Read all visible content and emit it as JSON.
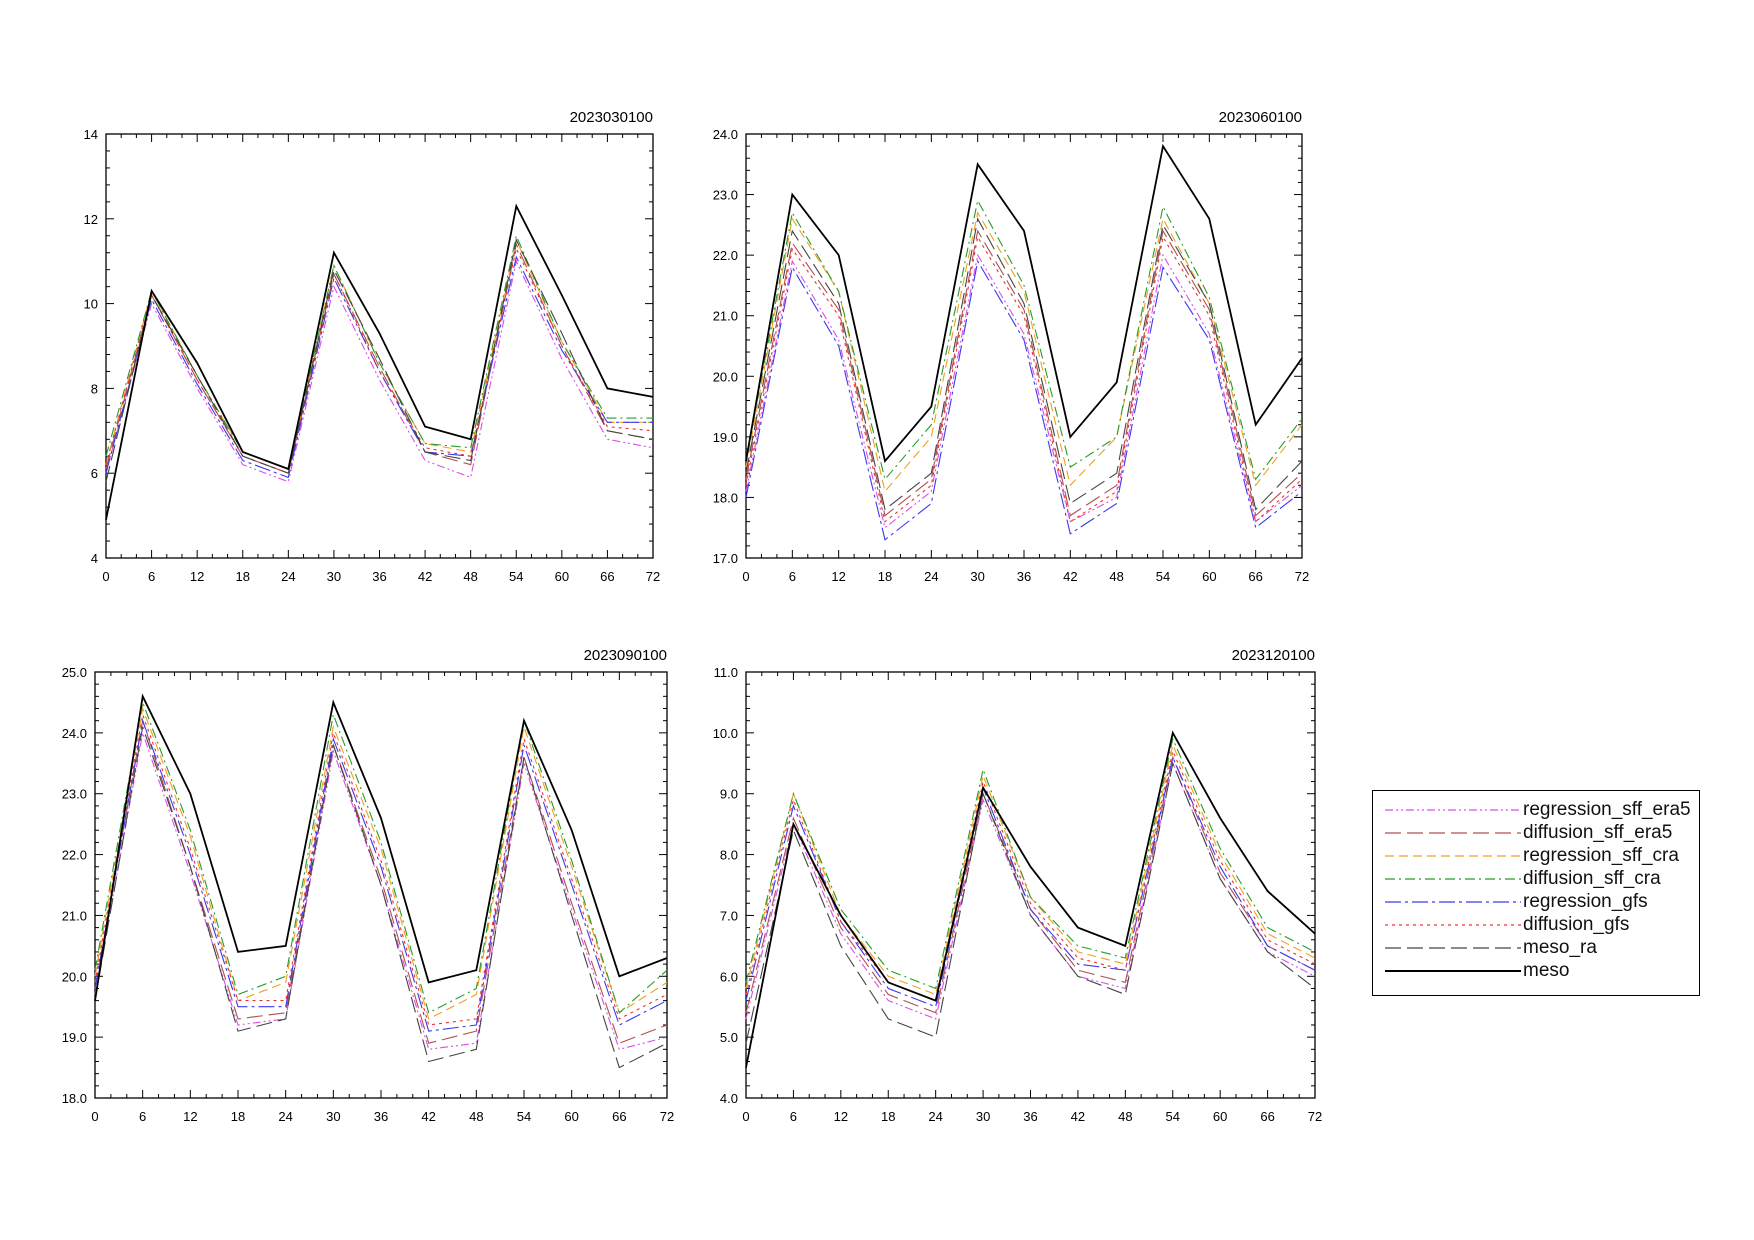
{
  "chart_data": [
    {
      "type": "line",
      "title": "2023030100",
      "x": [
        0,
        6,
        12,
        18,
        24,
        30,
        36,
        42,
        48,
        54,
        60,
        66,
        72
      ],
      "ylim": [
        4,
        14
      ],
      "yticks": [
        4,
        6,
        8,
        10,
        12,
        14
      ],
      "ytick_labels": [
        "4",
        "6",
        "8",
        "10",
        "12",
        "14"
      ],
      "series": [
        {
          "name": "regression_sff_era5",
          "values": [
            6.0,
            10.0,
            8.0,
            6.2,
            5.8,
            10.4,
            8.2,
            6.3,
            5.9,
            11.0,
            8.7,
            6.8,
            6.6
          ]
        },
        {
          "name": "diffusion_sff_era5",
          "values": [
            6.1,
            10.2,
            8.2,
            6.4,
            6.0,
            10.7,
            8.5,
            6.5,
            6.2,
            11.4,
            9.0,
            7.0,
            6.8
          ]
        },
        {
          "name": "regression_sff_cra",
          "values": [
            6.2,
            10.3,
            8.3,
            6.5,
            6.1,
            10.9,
            8.6,
            6.7,
            6.5,
            11.5,
            9.1,
            7.2,
            7.2
          ]
        },
        {
          "name": "diffusion_sff_cra",
          "values": [
            6.4,
            10.3,
            8.3,
            6.5,
            6.1,
            10.9,
            8.6,
            6.7,
            6.6,
            11.6,
            9.1,
            7.3,
            7.3
          ]
        },
        {
          "name": "regression_gfs",
          "values": [
            6.0,
            10.1,
            8.1,
            6.3,
            5.9,
            10.6,
            8.4,
            6.5,
            6.4,
            11.1,
            8.9,
            7.2,
            7.2
          ]
        },
        {
          "name": "diffusion_gfs",
          "values": [
            6.2,
            10.2,
            8.2,
            6.4,
            6.0,
            10.7,
            8.4,
            6.6,
            6.4,
            11.3,
            9.0,
            7.1,
            7.0
          ]
        },
        {
          "name": "meso_ra",
          "values": [
            5.8,
            10.2,
            8.3,
            6.4,
            6.0,
            10.8,
            8.7,
            6.5,
            6.3,
            11.5,
            9.3,
            7.0,
            6.8
          ]
        },
        {
          "name": "meso",
          "values": [
            4.9,
            10.3,
            8.6,
            6.5,
            6.1,
            11.2,
            9.3,
            7.1,
            6.8,
            12.3,
            10.2,
            8.0,
            7.8
          ]
        }
      ]
    },
    {
      "type": "line",
      "title": "2023060100",
      "x": [
        0,
        6,
        12,
        18,
        24,
        30,
        36,
        42,
        48,
        54,
        60,
        66,
        72
      ],
      "ylim": [
        17.0,
        24.0
      ],
      "yticks": [
        17,
        18,
        19,
        20,
        21,
        22,
        23,
        24
      ],
      "ytick_labels": [
        "17.0",
        "18.0",
        "19.0",
        "20.0",
        "21.0",
        "22.0",
        "23.0",
        "24.0"
      ],
      "series": [
        {
          "name": "regression_sff_era5",
          "values": [
            18.1,
            21.9,
            20.6,
            17.5,
            18.1,
            22.0,
            20.7,
            17.6,
            18.0,
            22.0,
            20.7,
            17.6,
            18.2
          ]
        },
        {
          "name": "diffusion_sff_era5",
          "values": [
            18.3,
            22.2,
            21.1,
            17.7,
            18.3,
            22.4,
            21.1,
            17.7,
            18.2,
            22.4,
            21.1,
            17.7,
            18.4
          ]
        },
        {
          "name": "regression_sff_cra",
          "values": [
            18.5,
            22.6,
            21.4,
            18.1,
            19.0,
            22.7,
            21.4,
            18.2,
            19.0,
            22.6,
            21.2,
            18.2,
            19.2
          ]
        },
        {
          "name": "diffusion_sff_cra",
          "values": [
            18.6,
            22.7,
            21.4,
            18.3,
            19.2,
            22.9,
            21.5,
            18.5,
            19.0,
            22.8,
            21.3,
            18.3,
            19.3
          ]
        },
        {
          "name": "regression_gfs",
          "values": [
            18.0,
            21.8,
            20.5,
            17.3,
            17.9,
            21.9,
            20.6,
            17.4,
            17.9,
            21.8,
            20.6,
            17.5,
            18.1
          ]
        },
        {
          "name": "diffusion_gfs",
          "values": [
            18.2,
            22.1,
            21.0,
            17.6,
            18.2,
            22.3,
            21.0,
            17.6,
            18.1,
            22.3,
            21.0,
            17.6,
            18.3
          ]
        },
        {
          "name": "meso_ra",
          "values": [
            18.4,
            22.4,
            21.2,
            17.8,
            18.4,
            22.6,
            21.2,
            17.9,
            18.4,
            22.5,
            21.2,
            17.8,
            18.6
          ]
        },
        {
          "name": "meso",
          "values": [
            18.6,
            23.0,
            22.0,
            18.6,
            19.5,
            23.5,
            22.4,
            19.0,
            19.9,
            23.8,
            22.6,
            19.2,
            20.3
          ]
        }
      ]
    },
    {
      "type": "line",
      "title": "2023090100",
      "x": [
        0,
        6,
        12,
        18,
        24,
        30,
        36,
        42,
        48,
        54,
        60,
        66,
        72
      ],
      "ylim": [
        18.0,
        25.0
      ],
      "yticks": [
        18,
        19,
        20,
        21,
        22,
        23,
        24,
        25
      ],
      "ytick_labels": [
        "18.0",
        "19.0",
        "20.0",
        "21.0",
        "22.0",
        "23.0",
        "24.0",
        "25.0"
      ],
      "series": [
        {
          "name": "regression_sff_era5",
          "values": [
            19.7,
            24.0,
            21.7,
            19.2,
            19.3,
            23.7,
            21.5,
            18.8,
            18.9,
            23.5,
            21.1,
            18.8,
            19.0
          ]
        },
        {
          "name": "diffusion_sff_era5",
          "values": [
            19.8,
            24.2,
            21.8,
            19.3,
            19.4,
            23.8,
            21.6,
            18.9,
            19.1,
            23.6,
            21.2,
            18.9,
            19.2
          ]
        },
        {
          "name": "regression_sff_cra",
          "values": [
            20.0,
            24.4,
            22.3,
            19.6,
            19.9,
            24.1,
            22.1,
            19.3,
            19.7,
            24.1,
            21.8,
            19.4,
            19.9
          ]
        },
        {
          "name": "diffusion_sff_cra",
          "values": [
            20.1,
            24.5,
            22.4,
            19.7,
            20.0,
            24.3,
            22.2,
            19.4,
            19.8,
            24.2,
            21.9,
            19.4,
            20.1
          ]
        },
        {
          "name": "regression_gfs",
          "values": [
            19.8,
            24.2,
            22.0,
            19.5,
            19.5,
            23.9,
            21.8,
            19.1,
            19.2,
            23.8,
            21.5,
            19.2,
            19.6
          ]
        },
        {
          "name": "diffusion_gfs",
          "values": [
            19.9,
            24.3,
            22.1,
            19.6,
            19.6,
            24.0,
            21.9,
            19.2,
            19.3,
            23.9,
            21.6,
            19.3,
            19.7
          ]
        },
        {
          "name": "meso_ra",
          "values": [
            19.6,
            24.1,
            21.8,
            19.1,
            19.3,
            23.8,
            21.5,
            18.6,
            18.8,
            23.6,
            21.0,
            18.5,
            18.9
          ]
        },
        {
          "name": "meso",
          "values": [
            19.6,
            24.6,
            23.0,
            20.4,
            20.5,
            24.5,
            22.6,
            19.9,
            20.1,
            24.2,
            22.4,
            20.0,
            20.3
          ]
        }
      ]
    },
    {
      "type": "line",
      "title": "2023120100",
      "x": [
        0,
        6,
        12,
        18,
        24,
        30,
        36,
        42,
        48,
        54,
        60,
        66,
        72
      ],
      "ylim": [
        4.0,
        11.0
      ],
      "yticks": [
        4,
        5,
        6,
        7,
        8,
        9,
        10,
        11
      ],
      "ytick_labels": [
        "4.0",
        "5.0",
        "6.0",
        "7.0",
        "8.0",
        "9.0",
        "10.0",
        "11.0"
      ],
      "series": [
        {
          "name": "regression_sff_era5",
          "values": [
            5.3,
            8.5,
            6.7,
            5.6,
            5.3,
            8.9,
            7.0,
            6.0,
            5.8,
            9.5,
            7.6,
            6.4,
            6.0
          ]
        },
        {
          "name": "diffusion_sff_era5",
          "values": [
            5.4,
            8.6,
            6.8,
            5.7,
            5.4,
            9.0,
            7.1,
            6.1,
            5.9,
            9.6,
            7.7,
            6.5,
            6.1
          ]
        },
        {
          "name": "regression_sff_cra",
          "values": [
            5.8,
            9.0,
            7.0,
            6.0,
            5.7,
            9.3,
            7.3,
            6.4,
            6.2,
            9.8,
            8.0,
            6.7,
            6.3
          ]
        },
        {
          "name": "diffusion_sff_cra",
          "values": [
            5.9,
            9.0,
            7.1,
            6.1,
            5.8,
            9.4,
            7.3,
            6.5,
            6.3,
            9.9,
            8.1,
            6.8,
            6.4
          ]
        },
        {
          "name": "regression_gfs",
          "values": [
            5.6,
            8.8,
            6.9,
            5.8,
            5.5,
            9.1,
            7.1,
            6.2,
            6.1,
            9.6,
            7.8,
            6.5,
            6.1
          ]
        },
        {
          "name": "diffusion_gfs",
          "values": [
            5.7,
            8.9,
            6.9,
            5.9,
            5.6,
            9.2,
            7.2,
            6.3,
            6.1,
            9.7,
            7.9,
            6.6,
            6.2
          ]
        },
        {
          "name": "meso_ra",
          "values": [
            4.9,
            8.4,
            6.5,
            5.3,
            5.0,
            9.0,
            7.0,
            6.0,
            5.7,
            9.5,
            7.6,
            6.4,
            5.8
          ]
        },
        {
          "name": "meso",
          "values": [
            4.5,
            8.5,
            7.0,
            5.9,
            5.6,
            9.1,
            7.8,
            6.8,
            6.5,
            10.0,
            8.6,
            7.4,
            6.7
          ]
        }
      ]
    }
  ],
  "legend": {
    "placement": "right",
    "items": [
      {
        "label": "regression_sff_era5",
        "color": "#d94fe6",
        "dash": "dash-dot-dot"
      },
      {
        "label": "diffusion_sff_era5",
        "color": "#b05050",
        "dash": "long-dash"
      },
      {
        "label": "regression_sff_cra",
        "color": "#f0a020",
        "dash": "dash"
      },
      {
        "label": "diffusion_sff_cra",
        "color": "#2a9a2a",
        "dash": "dash-dot"
      },
      {
        "label": "regression_gfs",
        "color": "#3a3af0",
        "dash": "long-dash-dot"
      },
      {
        "label": "diffusion_gfs",
        "color": "#f03030",
        "dash": "dot"
      },
      {
        "label": "meso_ra",
        "color": "#444444",
        "dash": "long-dash"
      },
      {
        "label": "meso",
        "color": "#000000",
        "dash": "solid"
      }
    ]
  },
  "xticks": [
    0,
    6,
    12,
    18,
    24,
    30,
    36,
    42,
    48,
    54,
    60,
    66,
    72
  ]
}
